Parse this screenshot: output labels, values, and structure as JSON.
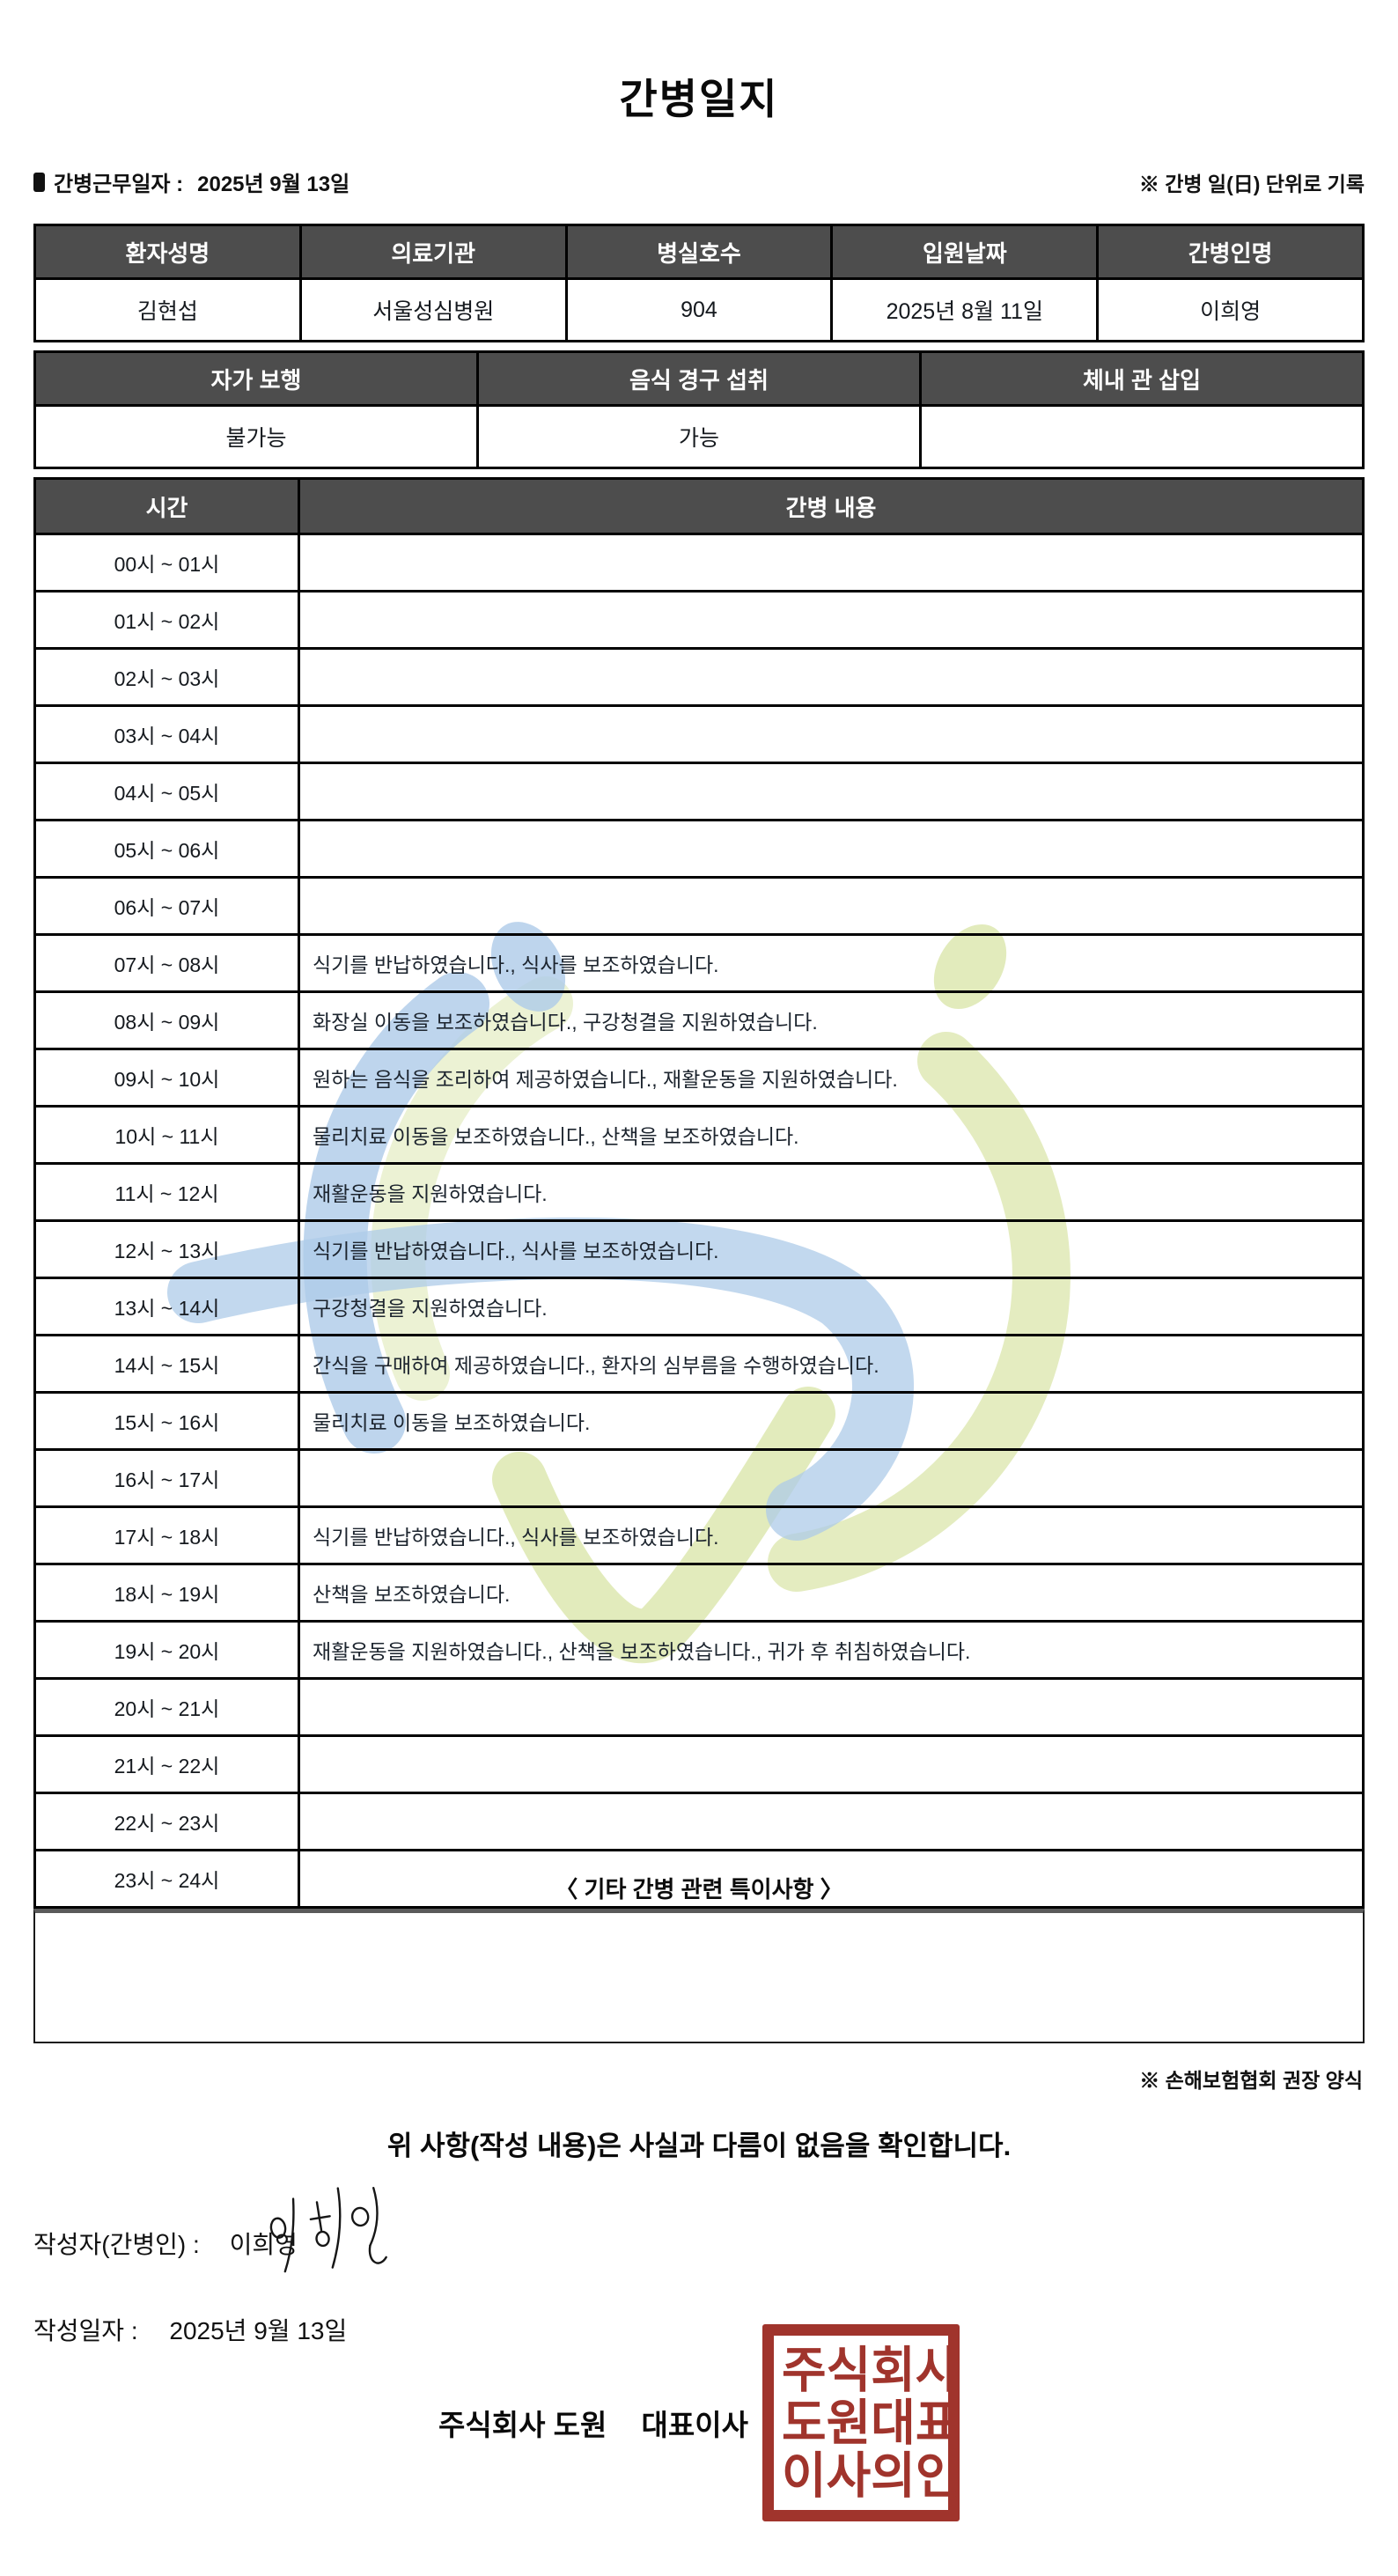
{
  "title": "간병일지",
  "meta": {
    "work_date_label": "간병근무일자  :",
    "work_date": "2025년 9월 13일",
    "unit_note": "※ 간병 일(日) 단위로 기록"
  },
  "patient_table": {
    "headers": [
      "환자성명",
      "의료기관",
      "병실호수",
      "입원날짜",
      "간병인명"
    ],
    "values": [
      "김현섭",
      "서울성심병원",
      "904",
      "2025년 8월 11일",
      "이희영"
    ]
  },
  "status_table": {
    "headers": [
      "자가 보행",
      "음식 경구 섭취",
      "체내 관 삽입"
    ],
    "values": [
      "불가능",
      "가능",
      ""
    ]
  },
  "care_table": {
    "time_header": "시간",
    "content_header": "간병 내용",
    "rows": [
      {
        "time": "00시 ~ 01시",
        "content": ""
      },
      {
        "time": "01시 ~ 02시",
        "content": ""
      },
      {
        "time": "02시 ~ 03시",
        "content": ""
      },
      {
        "time": "03시 ~ 04시",
        "content": ""
      },
      {
        "time": "04시 ~ 05시",
        "content": ""
      },
      {
        "time": "05시 ~ 06시",
        "content": ""
      },
      {
        "time": "06시 ~ 07시",
        "content": ""
      },
      {
        "time": "07시 ~ 08시",
        "content": "식기를 반납하였습니다., 식사를 보조하였습니다."
      },
      {
        "time": "08시 ~ 09시",
        "content": "화장실 이동을 보조하였습니다., 구강청결을 지원하였습니다."
      },
      {
        "time": "09시 ~ 10시",
        "content": "원하는 음식을 조리하여 제공하였습니다., 재활운동을 지원하였습니다."
      },
      {
        "time": "10시 ~ 11시",
        "content": "물리치료 이동을 보조하였습니다., 산책을 보조하였습니다."
      },
      {
        "time": "11시 ~ 12시",
        "content": "재활운동을 지원하였습니다."
      },
      {
        "time": "12시 ~ 13시",
        "content": "식기를 반납하였습니다., 식사를 보조하였습니다."
      },
      {
        "time": "13시 ~ 14시",
        "content": "구강청결을 지원하였습니다."
      },
      {
        "time": "14시 ~ 15시",
        "content": "간식을 구매하여 제공하였습니다., 환자의 심부름을 수행하였습니다."
      },
      {
        "time": "15시 ~ 16시",
        "content": "물리치료 이동을 보조하였습니다."
      },
      {
        "time": "16시 ~ 17시",
        "content": ""
      },
      {
        "time": "17시 ~ 18시",
        "content": "식기를 반납하였습니다., 식사를 보조하였습니다."
      },
      {
        "time": "18시 ~ 19시",
        "content": "산책을 보조하였습니다."
      },
      {
        "time": "19시 ~ 20시",
        "content": "재활운동을 지원하였습니다., 산책을 보조하였습니다., 귀가 후 취침하였습니다."
      },
      {
        "time": "20시 ~ 21시",
        "content": ""
      },
      {
        "time": "21시 ~ 22시",
        "content": ""
      },
      {
        "time": "22시 ~ 23시",
        "content": ""
      },
      {
        "time": "23시 ~ 24시",
        "content": ""
      }
    ]
  },
  "notes": {
    "heading": "〈 기타 간병 관련 특이사항 〉",
    "content": "",
    "form_note": "※ 손해보험협회 권장 양식"
  },
  "confirmation": "위 사항(작성 내용)은 사실과 다름이 없음을 확인합니다.",
  "signature": {
    "writer_label": "작성자(간병인) :",
    "writer_name": "이희영",
    "date_label": "작성일자 :",
    "date_value": "2025년 9월 13일",
    "company": "주식회사 도원",
    "company_title": "대표이사",
    "stamp_lines": [
      "주식회사",
      "도원대표",
      "이사의인"
    ]
  },
  "colors": {
    "header_bg": "#4d4d4d",
    "stamp_red": "#a0342c",
    "watermark_blue": "#aecbe8",
    "watermark_green": "#dde7b0"
  }
}
